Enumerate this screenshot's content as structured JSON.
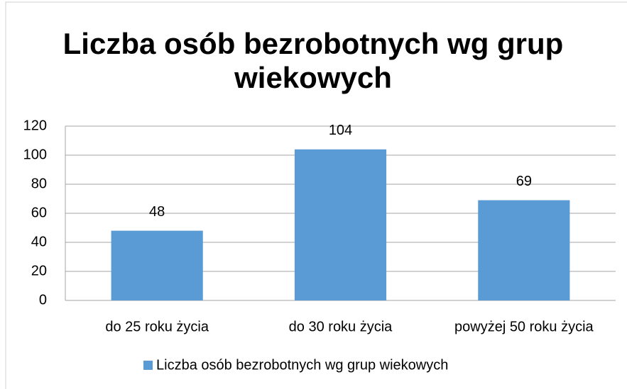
{
  "chart_data": {
    "type": "bar",
    "title": "Liczba osób bezrobotnych wg grup wiekowych",
    "categories": [
      "do 25 roku życia",
      "do 30 roku życia",
      "powyżej 50 roku życia"
    ],
    "series": [
      {
        "name": "Liczba osób bezrobotnych wg grup wiekowych",
        "color": "#5b9bd5",
        "values": [
          48,
          104,
          69
        ]
      }
    ],
    "ylim": [
      0,
      120
    ],
    "yticks": [
      0,
      20,
      40,
      60,
      80,
      100,
      120
    ],
    "grid": true,
    "legend": "bottom"
  }
}
